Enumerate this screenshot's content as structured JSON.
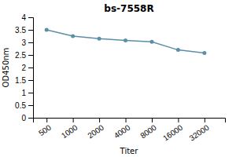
{
  "chart_data": {
    "type": "line",
    "title": "bs-7558R",
    "xlabel": "Titer",
    "ylabel": "OD450nm",
    "x": [
      500,
      1000,
      2000,
      4000,
      8000,
      16000,
      32000
    ],
    "values": [
      3.5,
      3.25,
      3.15,
      3.08,
      3.02,
      2.7,
      2.58
    ],
    "color": "#5b8fa8",
    "marker": "circle",
    "log": "x",
    "xlim": [
      350,
      55000
    ],
    "xticks": [
      500,
      1000,
      2000,
      4000,
      8000,
      16000,
      32000
    ],
    "ylim": [
      0,
      4
    ],
    "yticks": [
      0,
      0.5,
      1,
      1.5,
      2,
      2.5,
      3,
      3.5,
      4
    ],
    "grid": false
  }
}
